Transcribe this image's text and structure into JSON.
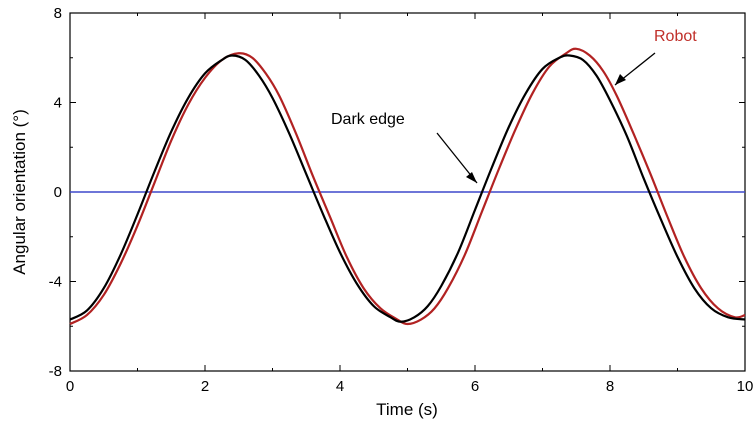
{
  "chart_data": {
    "type": "line",
    "title": "",
    "xlabel": "Time (s)",
    "ylabel": "Angular orientation (°)",
    "xlim": [
      0,
      10
    ],
    "ylim": [
      -8,
      8
    ],
    "x_ticks": [
      0,
      2,
      4,
      6,
      8,
      10
    ],
    "y_ticks": [
      -8,
      -4,
      0,
      4,
      8
    ],
    "grid": false,
    "legend": "none",
    "series": [
      {
        "name": "Dark edge",
        "color": "#000000",
        "x": [
          0,
          0.25,
          0.5,
          0.75,
          1.0,
          1.25,
          1.5,
          1.75,
          2.0,
          2.25,
          2.4,
          2.6,
          2.8,
          3.0,
          3.25,
          3.5,
          3.75,
          4.0,
          4.25,
          4.5,
          4.75,
          4.9,
          5.1,
          5.3,
          5.5,
          5.75,
          6.0,
          6.25,
          6.5,
          6.75,
          7.0,
          7.25,
          7.4,
          7.6,
          7.8,
          8.0,
          8.25,
          8.5,
          8.75,
          9.0,
          9.25,
          9.5,
          9.75,
          10.0
        ],
        "y": [
          -5.7,
          -5.3,
          -4.3,
          -2.8,
          -1.0,
          0.9,
          2.7,
          4.2,
          5.3,
          5.9,
          6.1,
          5.9,
          5.2,
          4.2,
          2.6,
          0.8,
          -1.0,
          -2.7,
          -4.1,
          -5.1,
          -5.6,
          -5.8,
          -5.6,
          -5.1,
          -4.2,
          -2.7,
          -0.8,
          1.1,
          2.9,
          4.4,
          5.5,
          6.0,
          6.1,
          5.9,
          5.2,
          4.1,
          2.5,
          0.6,
          -1.2,
          -2.9,
          -4.3,
          -5.2,
          -5.6,
          -5.7
        ]
      },
      {
        "name": "Robot",
        "color": "#b22222",
        "x": [
          0,
          0.25,
          0.5,
          0.75,
          1.0,
          1.25,
          1.5,
          1.75,
          2.0,
          2.25,
          2.5,
          2.7,
          2.9,
          3.1,
          3.35,
          3.6,
          3.85,
          4.1,
          4.35,
          4.6,
          4.85,
          5.0,
          5.2,
          5.4,
          5.6,
          5.85,
          6.1,
          6.35,
          6.6,
          6.85,
          7.1,
          7.35,
          7.5,
          7.7,
          7.9,
          8.1,
          8.35,
          8.6,
          8.85,
          9.1,
          9.35,
          9.6,
          9.85,
          10.0
        ],
        "y": [
          -5.9,
          -5.5,
          -4.6,
          -3.2,
          -1.5,
          0.4,
          2.3,
          3.9,
          5.1,
          5.9,
          6.2,
          6.0,
          5.3,
          4.3,
          2.6,
          0.7,
          -1.1,
          -2.9,
          -4.3,
          -5.2,
          -5.7,
          -5.9,
          -5.7,
          -5.2,
          -4.3,
          -2.8,
          -0.9,
          1.0,
          2.8,
          4.4,
          5.6,
          6.2,
          6.4,
          6.1,
          5.4,
          4.3,
          2.6,
          0.8,
          -1.1,
          -2.9,
          -4.3,
          -5.2,
          -5.6,
          -5.5
        ]
      },
      {
        "name": "",
        "color": "#3f48cc",
        "x": [
          0,
          10
        ],
        "y": [
          0,
          0
        ]
      }
    ],
    "annotations": [
      {
        "text": "Dark edge",
        "color": "#000000"
      },
      {
        "text": "Robot",
        "color": "#c0302a"
      }
    ]
  }
}
